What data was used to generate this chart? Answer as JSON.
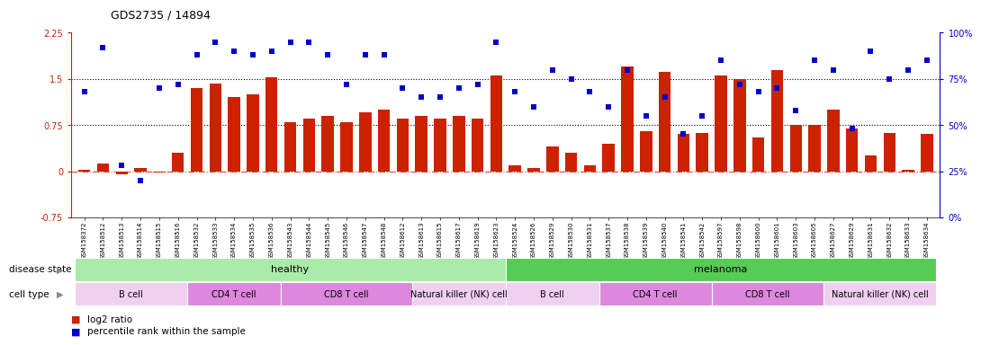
{
  "title": "GDS2735 / 14894",
  "samples": [
    "GSM158372",
    "GSM158512",
    "GSM158513",
    "GSM158514",
    "GSM158515",
    "GSM158516",
    "GSM158532",
    "GSM158533",
    "GSM158534",
    "GSM158535",
    "GSM158536",
    "GSM158543",
    "GSM158544",
    "GSM158545",
    "GSM158546",
    "GSM158547",
    "GSM158548",
    "GSM158612",
    "GSM158613",
    "GSM158615",
    "GSM158617",
    "GSM158619",
    "GSM158623",
    "GSM158524",
    "GSM158526",
    "GSM158529",
    "GSM158530",
    "GSM158531",
    "GSM158537",
    "GSM158538",
    "GSM158539",
    "GSM158540",
    "GSM158541",
    "GSM158542",
    "GSM158597",
    "GSM158598",
    "GSM158600",
    "GSM158601",
    "GSM158603",
    "GSM158605",
    "GSM158627",
    "GSM158629",
    "GSM158631",
    "GSM158632",
    "GSM158633",
    "GSM158634"
  ],
  "log2_ratio": [
    0.02,
    0.12,
    -0.05,
    0.05,
    -0.02,
    0.3,
    1.35,
    1.42,
    1.2,
    1.25,
    1.52,
    0.8,
    0.85,
    0.9,
    0.8,
    0.95,
    1.0,
    0.85,
    0.9,
    0.85,
    0.9,
    0.85,
    1.55,
    0.1,
    0.05,
    0.4,
    0.3,
    0.1,
    0.45,
    1.7,
    0.65,
    1.62,
    0.6,
    0.62,
    1.55,
    1.5,
    0.55,
    1.65,
    0.75,
    0.75,
    1.0,
    0.7,
    0.25,
    0.62,
    0.02,
    0.6
  ],
  "percentile_rank": [
    68,
    92,
    28,
    20,
    70,
    72,
    88,
    95,
    90,
    88,
    90,
    95,
    95,
    88,
    72,
    88,
    88,
    70,
    65,
    65,
    70,
    72,
    95,
    68,
    60,
    80,
    75,
    68,
    60,
    80,
    55,
    65,
    45,
    55,
    85,
    72,
    68,
    70,
    58,
    85,
    80,
    48,
    90,
    75,
    80,
    85
  ],
  "disease_state": [
    {
      "label": "healthy",
      "start": 0,
      "end": 23,
      "color": "#aaeaaa"
    },
    {
      "label": "melanoma",
      "start": 23,
      "end": 46,
      "color": "#55cc55"
    }
  ],
  "cell_types": [
    {
      "label": "B cell",
      "start": 0,
      "end": 6,
      "color": "#f0d0f0"
    },
    {
      "label": "CD4 T cell",
      "start": 6,
      "end": 11,
      "color": "#dd88dd"
    },
    {
      "label": "CD8 T cell",
      "start": 11,
      "end": 18,
      "color": "#dd88dd"
    },
    {
      "label": "Natural killer (NK) cell",
      "start": 18,
      "end": 23,
      "color": "#f0d0f0"
    },
    {
      "label": "B cell",
      "start": 23,
      "end": 28,
      "color": "#f0d0f0"
    },
    {
      "label": "CD4 T cell",
      "start": 28,
      "end": 34,
      "color": "#dd88dd"
    },
    {
      "label": "CD8 T cell",
      "start": 34,
      "end": 40,
      "color": "#dd88dd"
    },
    {
      "label": "Natural killer (NK) cell",
      "start": 40,
      "end": 46,
      "color": "#f0d0f0"
    }
  ],
  "ylim_left": [
    -0.75,
    2.25
  ],
  "ylim_right": [
    0,
    100
  ],
  "yticks_left": [
    -0.75,
    0.0,
    0.75,
    1.5,
    2.25
  ],
  "yticks_right": [
    0,
    25,
    50,
    75,
    100
  ],
  "hlines": [
    0.75,
    1.5
  ],
  "bar_color": "#cc2200",
  "scatter_color": "#0000cc",
  "zero_line_color": "#cc2200"
}
